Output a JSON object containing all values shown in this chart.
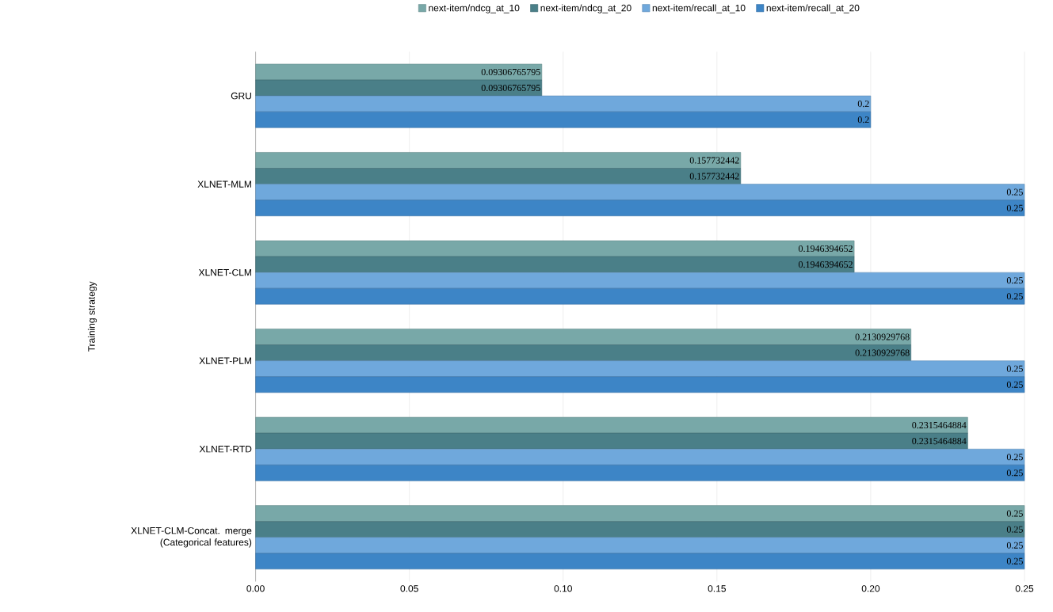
{
  "chart_data": {
    "type": "bar",
    "orientation": "horizontal",
    "ylabel": "Training strategy",
    "categories": [
      "GRU",
      "XLNET-MLM",
      "XLNET-CLM",
      "XLNET-PLM",
      "XLNET-RTD",
      "XLNET-CLM-Concat. merge (Categorical features)"
    ],
    "series": [
      {
        "name": "next-item/ndcg_at_10",
        "color": "#78a8a8",
        "values": [
          0.09306765795,
          0.157732442,
          0.1946394652,
          0.2130929768,
          0.2315464884,
          0.25
        ]
      },
      {
        "name": "next-item/ndcg_at_20",
        "color": "#4a7f88",
        "values": [
          0.09306765795,
          0.157732442,
          0.1946394652,
          0.2130929768,
          0.2315464884,
          0.25
        ]
      },
      {
        "name": "next-item/recall_at_10",
        "color": "#6fa8dc",
        "values": [
          0.2,
          0.25,
          0.25,
          0.25,
          0.25,
          0.25
        ]
      },
      {
        "name": "next-item/recall_at_20",
        "color": "#3d85c6",
        "values": [
          0.2,
          0.25,
          0.25,
          0.25,
          0.25,
          0.25
        ]
      }
    ],
    "xlim": [
      0,
      0.25
    ],
    "xticks": [
      {
        "value": 0,
        "label": "0.00"
      },
      {
        "value": 0.05,
        "label": "0.05"
      },
      {
        "value": 0.1,
        "label": "0.10"
      },
      {
        "value": 0.15,
        "label": "0.15"
      },
      {
        "value": 0.2,
        "label": "0.20"
      },
      {
        "value": 0.25,
        "label": "0.25"
      }
    ],
    "grid": "x",
    "legend": "top",
    "data_labels": true
  }
}
